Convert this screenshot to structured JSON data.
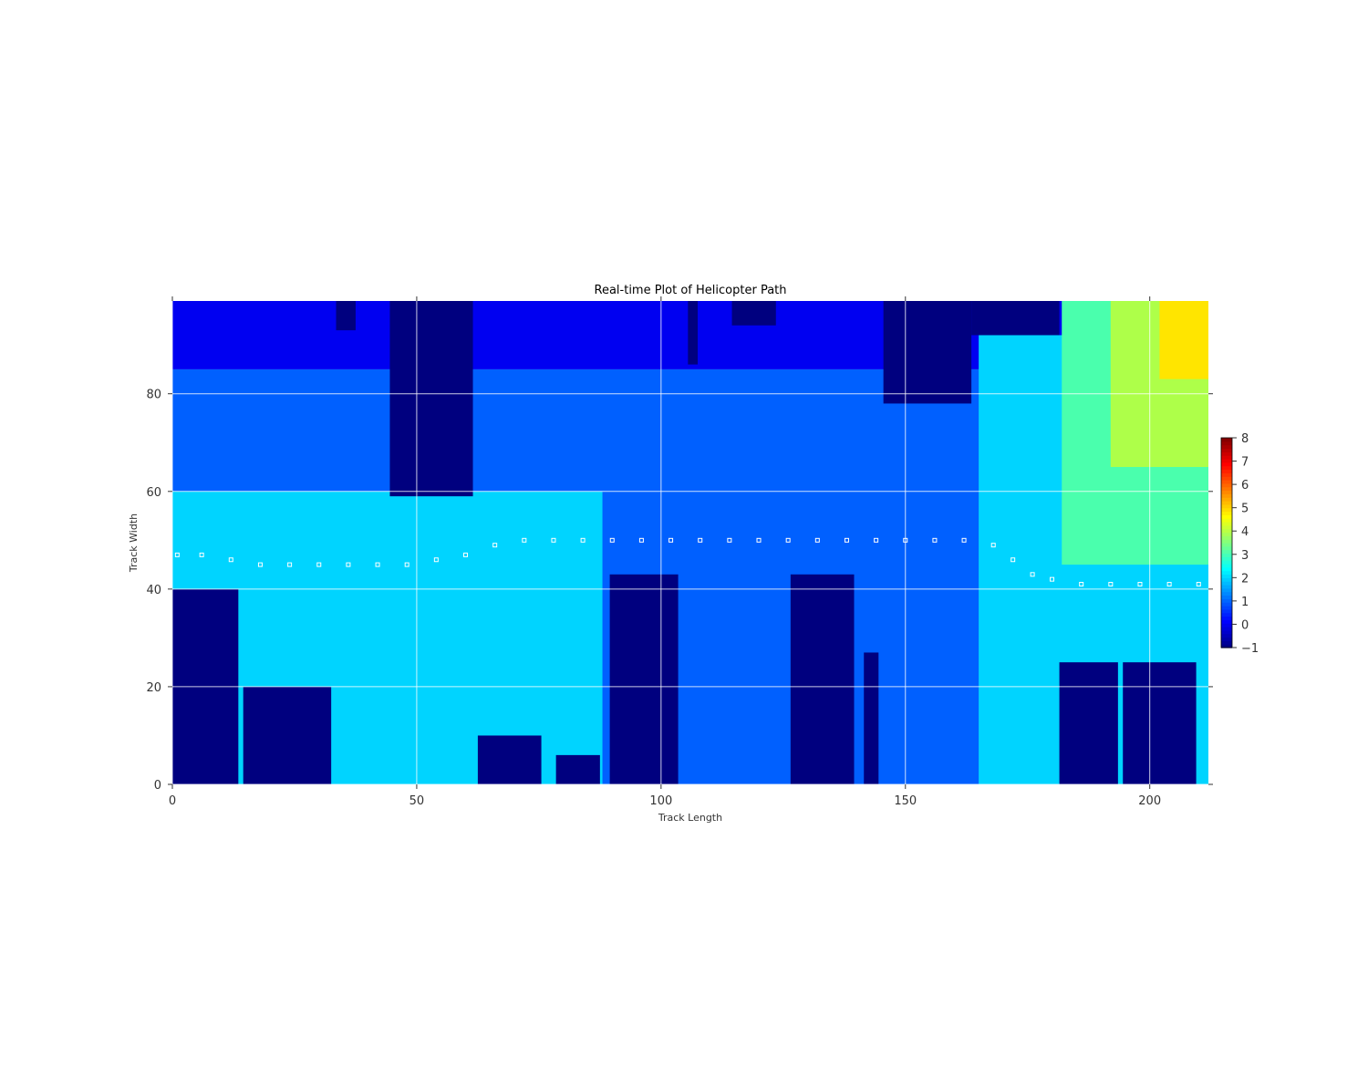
{
  "chart_data": {
    "type": "heatmap",
    "title": "Real-time Plot of Helicopter Path",
    "xlabel": "Track Length",
    "ylabel": "Track Width",
    "xlim": [
      0,
      212
    ],
    "ylim": [
      0,
      99
    ],
    "xticks": [
      0,
      50,
      100,
      150,
      200
    ],
    "yticks": [
      0,
      20,
      40,
      60,
      80
    ],
    "grid": true,
    "colormap": "jet",
    "colorbar": {
      "min": -1,
      "max": 8,
      "ticks": [
        -1,
        0,
        1,
        2,
        3,
        4,
        5,
        6,
        7,
        8
      ],
      "placement": "right"
    },
    "colors": {
      "obstacle": "#00007f",
      "level0": "#0000f1",
      "level1": "#0060ff",
      "level2": "#00d4ff",
      "level3": "#4affad",
      "level4": "#aeff49",
      "level5": "#ffe500"
    },
    "regions": [
      {
        "value": 0,
        "x": [
          0,
          212
        ],
        "y": [
          85,
          99
        ]
      },
      {
        "value": 1,
        "x": [
          0,
          212
        ],
        "y": [
          0,
          85
        ]
      },
      {
        "value": 2,
        "x": [
          0,
          88
        ],
        "y": [
          0,
          60
        ]
      },
      {
        "value": 2,
        "x": [
          165,
          212
        ],
        "y": [
          0,
          92
        ]
      },
      {
        "value": 3,
        "x": [
          182,
          212
        ],
        "y": [
          45,
          99
        ]
      },
      {
        "value": 4,
        "x": [
          192,
          212
        ],
        "y": [
          65,
          99
        ]
      },
      {
        "value": 5,
        "x": [
          202,
          212
        ],
        "y": [
          83,
          99
        ]
      }
    ],
    "obstacles": [
      {
        "x": [
          0,
          13.5
        ],
        "y": [
          0,
          40
        ]
      },
      {
        "x": [
          14.5,
          32.5
        ],
        "y": [
          0,
          20
        ]
      },
      {
        "x": [
          44.5,
          61.5
        ],
        "y": [
          59,
          99
        ]
      },
      {
        "x": [
          33.5,
          37.5
        ],
        "y": [
          93,
          99
        ]
      },
      {
        "x": [
          62.5,
          75.5
        ],
        "y": [
          0,
          10
        ]
      },
      {
        "x": [
          78.5,
          87.5
        ],
        "y": [
          0,
          6
        ]
      },
      {
        "x": [
          89.5,
          103.5
        ],
        "y": [
          0,
          43
        ]
      },
      {
        "x": [
          105.5,
          107.5
        ],
        "y": [
          86,
          99
        ]
      },
      {
        "x": [
          114.5,
          123.5
        ],
        "y": [
          94,
          99
        ]
      },
      {
        "x": [
          126.5,
          139.5
        ],
        "y": [
          0,
          43
        ]
      },
      {
        "x": [
          141.5,
          144.5
        ],
        "y": [
          0,
          27
        ]
      },
      {
        "x": [
          145.5,
          163.5
        ],
        "y": [
          78,
          99
        ]
      },
      {
        "x": [
          163.5,
          181.5
        ],
        "y": [
          92,
          99
        ]
      },
      {
        "x": [
          181.5,
          193.5
        ],
        "y": [
          0,
          25
        ]
      },
      {
        "x": [
          194.5,
          209.5
        ],
        "y": [
          0,
          25
        ]
      }
    ],
    "path_points": [
      {
        "x": 1,
        "y": 47
      },
      {
        "x": 6,
        "y": 47
      },
      {
        "x": 12,
        "y": 46
      },
      {
        "x": 18,
        "y": 45
      },
      {
        "x": 24,
        "y": 45
      },
      {
        "x": 30,
        "y": 45
      },
      {
        "x": 36,
        "y": 45
      },
      {
        "x": 42,
        "y": 45
      },
      {
        "x": 48,
        "y": 45
      },
      {
        "x": 54,
        "y": 46
      },
      {
        "x": 60,
        "y": 47
      },
      {
        "x": 66,
        "y": 49
      },
      {
        "x": 72,
        "y": 50
      },
      {
        "x": 78,
        "y": 50
      },
      {
        "x": 84,
        "y": 50
      },
      {
        "x": 90,
        "y": 50
      },
      {
        "x": 96,
        "y": 50
      },
      {
        "x": 102,
        "y": 50
      },
      {
        "x": 108,
        "y": 50
      },
      {
        "x": 114,
        "y": 50
      },
      {
        "x": 120,
        "y": 50
      },
      {
        "x": 126,
        "y": 50
      },
      {
        "x": 132,
        "y": 50
      },
      {
        "x": 138,
        "y": 50
      },
      {
        "x": 144,
        "y": 50
      },
      {
        "x": 150,
        "y": 50
      },
      {
        "x": 156,
        "y": 50
      },
      {
        "x": 162,
        "y": 50
      },
      {
        "x": 168,
        "y": 49
      },
      {
        "x": 172,
        "y": 46
      },
      {
        "x": 176,
        "y": 43
      },
      {
        "x": 180,
        "y": 42
      },
      {
        "x": 186,
        "y": 41
      },
      {
        "x": 192,
        "y": 41
      },
      {
        "x": 198,
        "y": 41
      },
      {
        "x": 204,
        "y": 41
      },
      {
        "x": 210,
        "y": 41
      }
    ]
  }
}
